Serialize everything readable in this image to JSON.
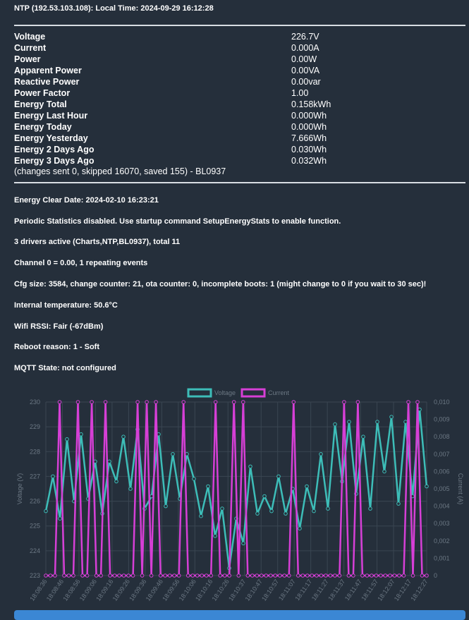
{
  "header": {
    "ntp_line": "NTP (192.53.103.108): Local Time: 2024-09-29 16:12:28"
  },
  "measurements": [
    {
      "label": "Voltage",
      "value": "226.7V"
    },
    {
      "label": "Current",
      "value": "0.000A"
    },
    {
      "label": "Power",
      "value": "0.00W"
    },
    {
      "label": "Apparent Power",
      "value": "0.00VA"
    },
    {
      "label": "Reactive Power",
      "value": "0.00var"
    },
    {
      "label": "Power Factor",
      "value": "1.00"
    },
    {
      "label": "Energy Total",
      "value": "0.158kWh"
    },
    {
      "label": "Energy Last Hour",
      "value": "0.000Wh"
    },
    {
      "label": "Energy Today",
      "value": "0.000Wh"
    },
    {
      "label": "Energy Yesterday",
      "value": "7.666Wh"
    },
    {
      "label": "Energy 2 Days Ago",
      "value": "0.030Wh"
    },
    {
      "label": "Energy 3 Days Ago",
      "value": "0.032Wh"
    }
  ],
  "changes_line": "(changes sent 0, skipped 16070, saved 155) - BL0937",
  "info": [
    "Energy Clear Date: 2024-02-10 16:23:21",
    "Periodic Statistics disabled. Use startup command SetupEnergyStats to enable function.",
    "3 drivers active (Charts,NTP,BL0937), total 11",
    "Channel 0 = 0.00, 1 repeating events",
    "Cfg size: 3584, change counter: 21, ota counter: 0, incomplete boots: 1 (might change to 0 if you wait to 30 sec)!",
    "Internal temperature: 50.6°C",
    "Wifi RSSI: Fair (-67dBm)",
    "Reboot reason: 1 - Soft",
    "MQTT State: not configured"
  ],
  "colors": {
    "voltage": "#3dbdb8",
    "current": "#d63fd6",
    "grid": "#3a4652",
    "tick": "#6c7884"
  },
  "chart_data": {
    "type": "line",
    "legend_position": "top",
    "x_ticks": [
      "18:08:36",
      "18:08:46",
      "18:08:56",
      "18:09:06",
      "18:09:16",
      "18:09:26",
      "18:09:36",
      "18:09:46",
      "18:09:56",
      "18:10:06",
      "18:10:16",
      "18:10:26",
      "18:10:37",
      "18:10:47",
      "18:10:57",
      "18:11:07",
      "18:11:17",
      "18:11:27",
      "18:11:37",
      "18:11:47",
      "18:11:57",
      "18:12:07",
      "18:12:17",
      "18:12:27"
    ],
    "y_left": {
      "label": "Voltage (V)",
      "min": 223,
      "max": 230,
      "ticks": [
        "223",
        "224",
        "225",
        "226",
        "227",
        "228",
        "229",
        "230"
      ]
    },
    "y_right": {
      "label": "Current (A)",
      "min": 0,
      "max": 0.01,
      "ticks": [
        "0",
        "0,001",
        "0,002",
        "0,003",
        "0,004",
        "0,005",
        "0,006",
        "0,007",
        "0,008",
        "0,009",
        "0,010"
      ]
    },
    "series": [
      {
        "name": "Voltage",
        "axis": "left",
        "values": [
          225.6,
          227.0,
          225.3,
          228.5,
          226.0,
          228.7,
          226.1,
          227.6,
          225.5,
          227.6,
          226.8,
          228.6,
          226.5,
          228.9,
          225.7,
          226.2,
          228.7,
          225.8,
          227.9,
          226.1,
          227.9,
          226.9,
          225.4,
          226.6,
          224.6,
          225.7,
          223.3,
          225.3,
          224.3,
          227.4,
          225.5,
          226.2,
          225.6,
          227.0,
          225.5,
          226.5,
          224.9,
          226.6,
          225.6,
          227.9,
          225.7,
          229.1,
          226.8,
          229.2,
          226.3,
          228.6,
          225.7,
          229.2,
          227.2,
          229.4,
          225.9,
          229.2,
          226.2,
          229.7,
          226.6
        ]
      },
      {
        "name": "Current",
        "axis": "right",
        "values": [
          0,
          0,
          0,
          0.01,
          0,
          0,
          0,
          0.01,
          0,
          0,
          0.01,
          0,
          0,
          0.01,
          0,
          0,
          0,
          0,
          0,
          0,
          0.01,
          0,
          0.01,
          0,
          0.01,
          0,
          0,
          0,
          0,
          0,
          0.01,
          0,
          0,
          0,
          0,
          0,
          0,
          0.01,
          0,
          0,
          0,
          0.01,
          0,
          0.01,
          0,
          0,
          0,
          0,
          0,
          0,
          0,
          0,
          0,
          0,
          0.01,
          0,
          0,
          0,
          0,
          0,
          0,
          0,
          0,
          0,
          0,
          0.01,
          0,
          0,
          0.01,
          0,
          0,
          0,
          0,
          0,
          0,
          0,
          0,
          0,
          0,
          0.01,
          0,
          0.01,
          0,
          0
        ]
      }
    ]
  }
}
